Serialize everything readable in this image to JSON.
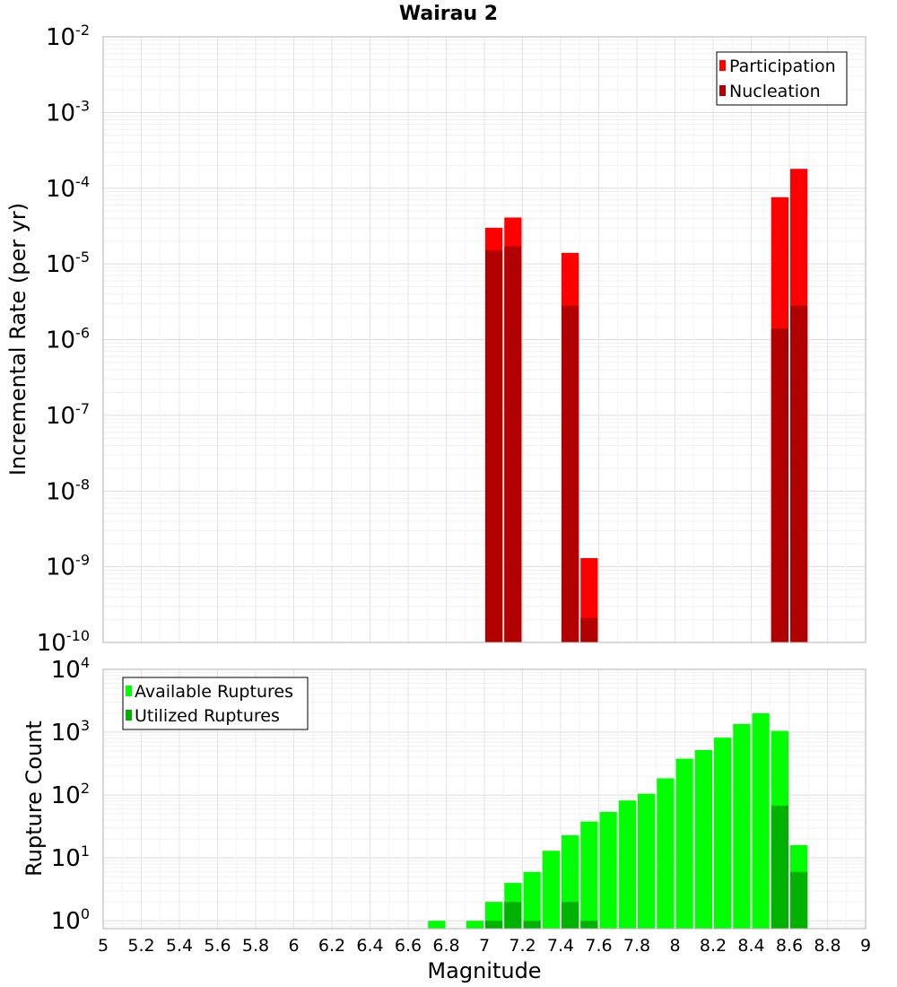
{
  "chart_data": [
    {
      "type": "bar",
      "title": "Wairau 2",
      "xlabel": "",
      "ylabel": "Incremental Rate (per yr)",
      "yscale": "log",
      "ylim": [
        1e-10,
        0.01
      ],
      "xlim": [
        5,
        9
      ],
      "ytick_exponents": [
        "-2",
        "-3",
        "-4",
        "-5",
        "-6",
        "-7",
        "-8",
        "-9",
        "-10"
      ],
      "legend": {
        "placement": "top-right",
        "entries": [
          "Participation",
          "Nucleation"
        ]
      },
      "colors": {
        "Participation": "#ff0000",
        "Nucleation": "#b20000"
      },
      "grid": true,
      "x": [
        7.05,
        7.15,
        7.45,
        7.55,
        8.55,
        8.65
      ],
      "series": [
        {
          "name": "Participation",
          "values": [
            3e-05,
            4.1e-05,
            1.4e-05,
            1.3e-09,
            7.6e-05,
            0.00018
          ]
        },
        {
          "name": "Nucleation",
          "values": [
            1.5e-05,
            1.7e-05,
            2.8e-06,
            2.1e-10,
            1.4e-06,
            2.8e-06
          ]
        }
      ]
    },
    {
      "type": "bar",
      "title": "",
      "xlabel": "Magnitude",
      "ylabel": "Rupture Count",
      "yscale": "log",
      "ylim": [
        0.75,
        10000
      ],
      "xlim": [
        5,
        9
      ],
      "ytick_exponents": [
        "4",
        "3",
        "2",
        "1",
        "0"
      ],
      "xticks": [
        "5",
        "5.2",
        "5.4",
        "5.6",
        "5.8",
        "6",
        "6.2",
        "6.4",
        "6.6",
        "6.8",
        "7",
        "7.2",
        "7.4",
        "7.6",
        "7.8",
        "8",
        "8.2",
        "8.4",
        "8.6",
        "8.8",
        "9"
      ],
      "legend": {
        "placement": "top-left",
        "entries": [
          "Available Ruptures",
          "Utilized Ruptures"
        ]
      },
      "colors": {
        "Available Ruptures": "#00ff00",
        "Utilized Ruptures": "#00b200"
      },
      "grid": true,
      "x": [
        6.75,
        6.95,
        7.05,
        7.15,
        7.25,
        7.35,
        7.45,
        7.55,
        7.65,
        7.75,
        7.85,
        7.95,
        8.05,
        8.15,
        8.25,
        8.35,
        8.45,
        8.55,
        8.65
      ],
      "series": [
        {
          "name": "Available Ruptures",
          "values": [
            1,
            1,
            2,
            4,
            6,
            13,
            23,
            38,
            54,
            82,
            105,
            185,
            380,
            520,
            820,
            1350,
            2000,
            1050,
            16
          ]
        },
        {
          "name": "Utilized Ruptures",
          "values": [
            0,
            0,
            1,
            2,
            1,
            0,
            2,
            1,
            0,
            0,
            0,
            0,
            0,
            0,
            0,
            0,
            0,
            68,
            6
          ]
        }
      ]
    }
  ]
}
